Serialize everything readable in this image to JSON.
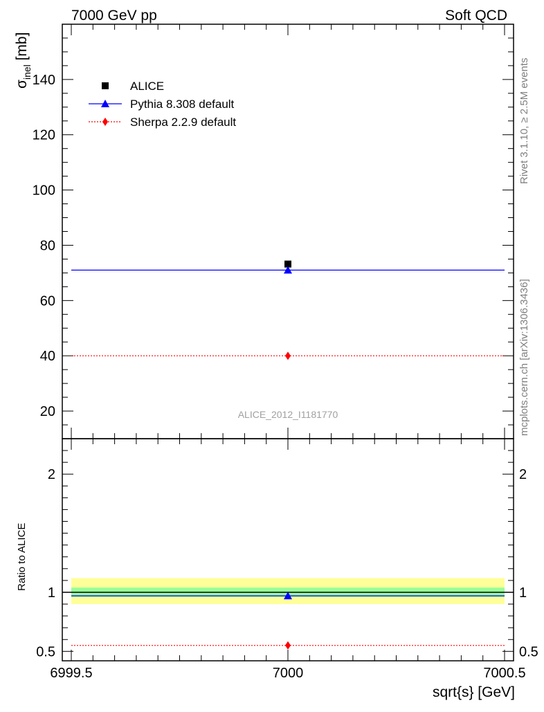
{
  "header": {
    "left": "7000 GeV pp",
    "right": "Soft QCD"
  },
  "side_labels": {
    "rivet": "Rivet 3.1.10, ≥ 2.5M events",
    "source": "mcplots.cern.ch [arXiv:1306.3436]"
  },
  "watermark": "ALICE_2012_I1181770",
  "colors": {
    "data": "#000000",
    "pythia": "#0000ff",
    "sherpa": "#ff0000",
    "band_inner": "#99ff99",
    "band_outer": "#ffff99"
  },
  "chart_data": [
    {
      "type": "scatter",
      "panel": "main",
      "ylabel": "σ_inel [mb]",
      "ylabel_main": "σ",
      "ylabel_sub": "inel",
      "ylabel_unit": " [mb]",
      "xlim": [
        6999.5,
        7000.5
      ],
      "ylim": [
        10,
        160
      ],
      "yticks": [
        20,
        40,
        60,
        80,
        100,
        120,
        140
      ],
      "legend_position": "top-left",
      "series": [
        {
          "name": "ALICE",
          "marker": "square",
          "x": [
            7000
          ],
          "y": [
            73.2
          ]
        },
        {
          "name": "Pythia 8.308 default",
          "marker": "triangle",
          "x": [
            7000
          ],
          "y": [
            71.0
          ],
          "xerr": [
            [
              6999.5,
              7000.5
            ]
          ]
        },
        {
          "name": "Sherpa 2.2.9 default",
          "marker": "diamond",
          "x": [
            7000
          ],
          "y": [
            40.0
          ],
          "xerr": [
            [
              6999.5,
              7000.5
            ]
          ]
        }
      ]
    },
    {
      "type": "scatter",
      "panel": "ratio",
      "ylabel": "Ratio to ALICE",
      "xlabel": "sqrt{s} [GeV]",
      "xlim": [
        6999.5,
        7000.5
      ],
      "xticks": [
        6999.5,
        7000,
        7000.5
      ],
      "ylim": [
        0.42,
        2.3
      ],
      "yticks": [
        0.5,
        1,
        2
      ],
      "bands": {
        "inner": [
          0.96,
          1.04
        ],
        "outer": [
          0.9,
          1.12
        ]
      },
      "series": [
        {
          "name": "Pythia 8.308 default",
          "marker": "triangle",
          "x": [
            7000
          ],
          "y": [
            0.97
          ]
        },
        {
          "name": "Sherpa 2.2.9 default",
          "marker": "diamond",
          "x": [
            7000
          ],
          "y": [
            0.55
          ]
        }
      ]
    }
  ]
}
